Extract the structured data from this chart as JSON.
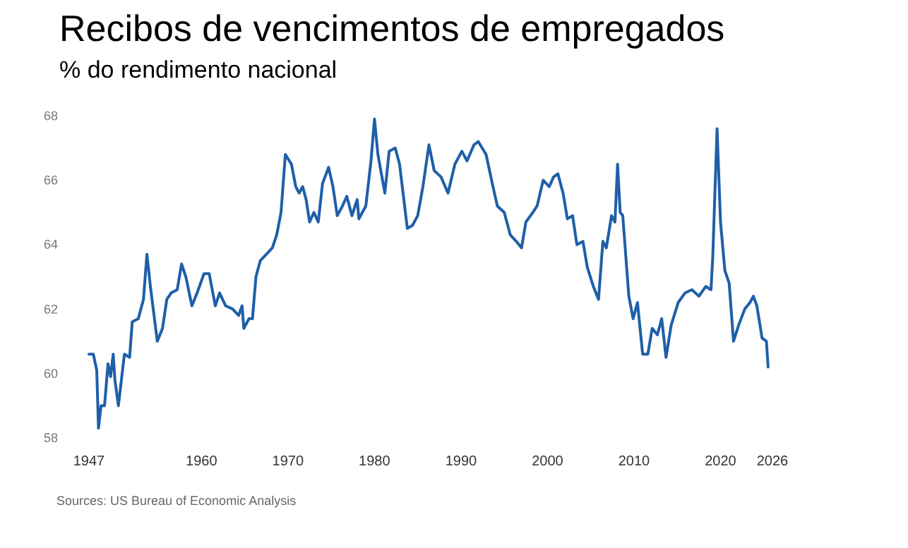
{
  "chart_data": {
    "type": "line",
    "title": "Recibos de vencimentos de empregados",
    "subtitle": "% do rendimento nacional",
    "annotations": [
      "Sources: US Bureau of Economic Analysis"
    ],
    "xlim": [
      1947,
      2026
    ],
    "xticks": [
      1947,
      1960,
      1970,
      1980,
      1990,
      2000,
      2010,
      2020,
      2026
    ],
    "ylim": [
      58,
      68
    ],
    "yticks": [
      58,
      60,
      62,
      64,
      66,
      68
    ],
    "grid": false,
    "marker": "none",
    "line_style": "solid",
    "x": [
      1947.0,
      1947.5,
      1947.9,
      1948.1,
      1948.4,
      1948.8,
      1949.2,
      1949.5,
      1949.8,
      1950.0,
      1950.4,
      1951.1,
      1951.7,
      1952.0,
      1952.7,
      1953.3,
      1953.7,
      1954.1,
      1954.9,
      1955.5,
      1956.0,
      1956.5,
      1957.2,
      1957.7,
      1958.2,
      1958.9,
      1959.5,
      1960.3,
      1960.9,
      1961.6,
      1962.1,
      1962.8,
      1963.6,
      1964.3,
      1964.7,
      1964.9,
      1965.5,
      1965.9,
      1966.3,
      1966.8,
      1967.5,
      1968.2,
      1968.7,
      1969.2,
      1969.7,
      1970.4,
      1970.9,
      1971.3,
      1971.7,
      1972.1,
      1972.5,
      1973.0,
      1973.5,
      1974.0,
      1974.7,
      1975.2,
      1975.7,
      1976.3,
      1976.8,
      1977.4,
      1978.0,
      1978.2,
      1979.0,
      1979.6,
      1980.0,
      1980.4,
      1980.8,
      1981.2,
      1981.7,
      1982.4,
      1982.9,
      1983.8,
      1984.4,
      1985.0,
      1985.6,
      1986.3,
      1986.9,
      1987.7,
      1988.5,
      1989.3,
      1990.1,
      1990.7,
      1991.5,
      1992.0,
      1992.9,
      1993.7,
      1994.2,
      1995.0,
      1995.7,
      1996.4,
      1997.0,
      1997.5,
      1998.3,
      1998.8,
      1999.5,
      2000.2,
      2000.7,
      2001.2,
      2001.8,
      2002.3,
      2002.9,
      2003.4,
      2004.1,
      2004.6,
      2005.3,
      2005.9,
      2006.4,
      2006.8,
      2007.4,
      2007.8,
      2008.1,
      2008.4,
      2008.7,
      2009.4,
      2009.9,
      2010.4,
      2011.0,
      2011.6,
      2012.1,
      2012.7,
      2013.2,
      2013.7,
      2014.3,
      2015.1,
      2015.9,
      2016.7,
      2017.5,
      2018.3,
      2018.9,
      2019.1,
      2019.6,
      2020.0,
      2020.5,
      2021.0,
      2021.5,
      2022.1,
      2022.8,
      2023.4,
      2023.8,
      2024.2,
      2024.8,
      2025.3,
      2025.5
    ],
    "series": [
      {
        "color": "#1f5fa8",
        "values": [
          60.6,
          60.6,
          60.1,
          58.3,
          59.0,
          59.0,
          60.3,
          59.9,
          60.6,
          59.8,
          59.0,
          60.6,
          60.5,
          61.6,
          61.7,
          62.3,
          63.7,
          62.7,
          61.0,
          61.4,
          62.3,
          62.5,
          62.6,
          63.4,
          63.0,
          62.1,
          62.5,
          63.1,
          63.1,
          62.1,
          62.5,
          62.1,
          62.0,
          61.8,
          62.1,
          61.4,
          61.7,
          61.7,
          63.0,
          63.5,
          63.7,
          63.9,
          64.3,
          65.0,
          66.8,
          66.5,
          65.8,
          65.6,
          65.8,
          65.4,
          64.7,
          65.0,
          64.7,
          65.9,
          66.4,
          65.8,
          64.9,
          65.2,
          65.5,
          64.9,
          65.4,
          64.8,
          65.2,
          66.6,
          67.9,
          66.8,
          66.2,
          65.6,
          66.9,
          67.0,
          66.5,
          64.5,
          64.6,
          64.9,
          65.8,
          67.1,
          66.3,
          66.1,
          65.6,
          66.5,
          66.9,
          66.6,
          67.1,
          67.2,
          66.8,
          65.8,
          65.2,
          65.0,
          64.3,
          64.1,
          63.9,
          64.7,
          65.0,
          65.2,
          66.0,
          65.8,
          66.1,
          66.2,
          65.6,
          64.8,
          64.9,
          64.0,
          64.1,
          63.3,
          62.7,
          62.3,
          64.1,
          63.9,
          64.9,
          64.7,
          66.5,
          65.0,
          64.9,
          62.4,
          61.7,
          62.2,
          60.6,
          60.6,
          61.4,
          61.2,
          61.7,
          60.5,
          61.5,
          62.2,
          62.5,
          62.6,
          62.4,
          62.7,
          62.6,
          63.6,
          67.6,
          64.7,
          63.2,
          62.8,
          61.0,
          61.5,
          62.0,
          62.2,
          62.4,
          62.1,
          61.1,
          61.0,
          60.2
        ]
      }
    ]
  }
}
